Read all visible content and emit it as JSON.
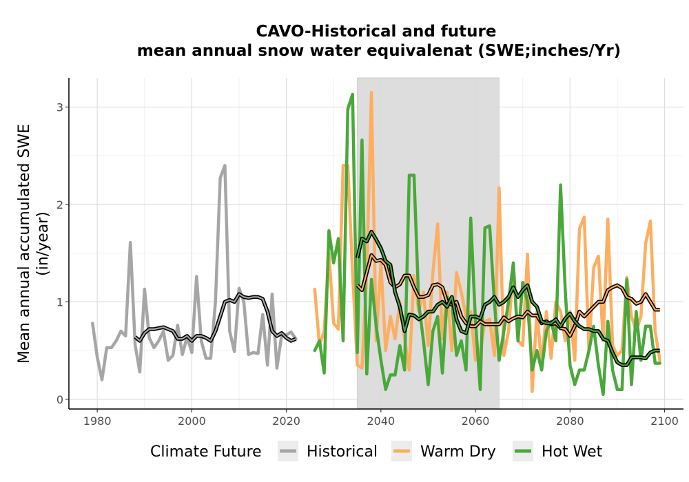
{
  "chart_data": {
    "type": "line",
    "title_line1": "CAVO-Historical and future",
    "title_line2": "mean annual snow water equivalenat (SWE;inches/Yr)",
    "ylabel_line1": "Mean annual accumulated SWE",
    "ylabel_line2": "(in/year)",
    "xlim": [
      1974,
      2104
    ],
    "ylim": [
      -0.1,
      3.3
    ],
    "x_ticks": [
      1980,
      2000,
      2020,
      2040,
      2060,
      2080,
      2100
    ],
    "y_ticks": [
      0,
      1,
      2,
      3
    ],
    "grid": true,
    "shaded_period": [
      2035,
      2065
    ],
    "legend": {
      "position": "bottom",
      "title": "Climate Future",
      "entries": [
        {
          "name": "Historical",
          "color": "#a6a6a6"
        },
        {
          "name": "Warm Dry",
          "color": "#fdae61"
        },
        {
          "name": "Hot Wet",
          "color": "#4aa83a"
        }
      ]
    },
    "series": [
      {
        "name": "Historical",
        "color": "#a6a6a6",
        "x": [
          1979,
          1980,
          1981,
          1982,
          1983,
          1984,
          1985,
          1986,
          1987,
          1988,
          1989,
          1990,
          1991,
          1992,
          1993,
          1994,
          1995,
          1996,
          1997,
          1998,
          1999,
          2000,
          2001,
          2002,
          2003,
          2004,
          2005,
          2006,
          2007,
          2008,
          2009,
          2010,
          2011,
          2012,
          2013,
          2014,
          2015,
          2016,
          2017,
          2018,
          2019,
          2020,
          2021,
          2022
        ],
        "values": [
          0.78,
          0.43,
          0.2,
          0.53,
          0.53,
          0.6,
          0.7,
          0.65,
          1.61,
          0.56,
          0.28,
          1.13,
          0.63,
          0.53,
          0.6,
          0.7,
          0.4,
          0.45,
          0.76,
          0.46,
          0.64,
          0.48,
          1.26,
          0.6,
          0.42,
          0.42,
          1.0,
          2.27,
          2.4,
          0.7,
          0.49,
          1.14,
          1.0,
          0.46,
          0.48,
          0.47,
          0.87,
          0.35,
          1.08,
          0.32,
          0.66,
          0.66,
          0.69,
          0.62
        ]
      },
      {
        "name": "Warm Dry",
        "color": "#fdae61",
        "x": [
          2026,
          2027,
          2028,
          2029,
          2030,
          2031,
          2032,
          2033,
          2034,
          2035,
          2036,
          2037,
          2038,
          2039,
          2040,
          2041,
          2042,
          2043,
          2044,
          2045,
          2046,
          2047,
          2048,
          2049,
          2050,
          2051,
          2052,
          2053,
          2054,
          2055,
          2056,
          2057,
          2058,
          2059,
          2060,
          2061,
          2062,
          2063,
          2064,
          2065,
          2066,
          2067,
          2068,
          2069,
          2070,
          2071,
          2072,
          2073,
          2074,
          2075,
          2076,
          2077,
          2078,
          2079,
          2080,
          2081,
          2082,
          2083,
          2084,
          2085,
          2086,
          2087,
          2088,
          2089,
          2090,
          2091,
          2092,
          2093,
          2094,
          2095,
          2096,
          2097,
          2098,
          2099
        ],
        "values": [
          1.13,
          0.55,
          0.7,
          1.5,
          0.78,
          0.72,
          2.4,
          2.4,
          1.3,
          0.35,
          0.32,
          1.3,
          3.15,
          0.6,
          1.4,
          0.5,
          0.85,
          0.62,
          1.0,
          0.62,
          0.3,
          1.27,
          0.9,
          1.1,
          0.55,
          1.3,
          1.8,
          0.62,
          1.1,
          0.5,
          1.3,
          1.1,
          0.85,
          0.9,
          0.4,
          0.48,
          0.8,
          0.82,
          0.45,
          2.17,
          0.45,
          0.7,
          1.35,
          0.6,
          0.55,
          1.49,
          0.08,
          0.9,
          0.35,
          0.9,
          0.42,
          1.0,
          0.9,
          0.6,
          0.9,
          0.4,
          1.75,
          1.87,
          0.5,
          1.35,
          1.47,
          0.6,
          1.85,
          0.55,
          0.45,
          0.5,
          1.25,
          0.85,
          0.7,
          0.85,
          1.6,
          1.83,
          0.7,
          0.4
        ]
      },
      {
        "name": "Hot Wet",
        "color": "#4aa83a",
        "x": [
          2026,
          2027,
          2028,
          2029,
          2030,
          2031,
          2032,
          2033,
          2034,
          2035,
          2036,
          2037,
          2038,
          2039,
          2040,
          2041,
          2042,
          2043,
          2044,
          2045,
          2046,
          2047,
          2048,
          2049,
          2050,
          2051,
          2052,
          2053,
          2054,
          2055,
          2056,
          2057,
          2058,
          2059,
          2060,
          2061,
          2062,
          2063,
          2064,
          2065,
          2066,
          2067,
          2068,
          2069,
          2070,
          2071,
          2072,
          2073,
          2074,
          2075,
          2076,
          2077,
          2078,
          2079,
          2080,
          2081,
          2082,
          2083,
          2084,
          2085,
          2086,
          2087,
          2088,
          2089,
          2090,
          2091,
          2092,
          2093,
          2094,
          2095,
          2096,
          2097,
          2098,
          2099
        ],
        "values": [
          0.5,
          0.6,
          0.27,
          1.73,
          1.4,
          1.65,
          0.6,
          2.98,
          3.13,
          0.48,
          2.66,
          0.26,
          1.23,
          0.75,
          0.4,
          0.1,
          0.25,
          0.25,
          0.55,
          0.3,
          2.3,
          2.3,
          0.98,
          0.6,
          0.15,
          0.7,
          0.85,
          0.27,
          1.05,
          1.0,
          0.45,
          0.6,
          0.3,
          1.86,
          0.8,
          0.1,
          1.76,
          1.78,
          1.0,
          0.4,
          0.7,
          1.0,
          1.4,
          0.6,
          1.2,
          1.0,
          0.3,
          0.5,
          0.3,
          0.7,
          0.8,
          0.6,
          2.2,
          1.1,
          0.35,
          0.15,
          0.3,
          0.3,
          0.5,
          0.75,
          0.35,
          0.05,
          0.8,
          0.3,
          0.1,
          0.1,
          1.23,
          0.15,
          0.9,
          0.4,
          0.75,
          0.75,
          0.37,
          0.37
        ]
      }
    ],
    "smoothed": [
      {
        "name": "Historical",
        "color": "#a6a6a6",
        "x": [
          1988,
          1989,
          1990,
          1991,
          1992,
          1993,
          1994,
          1995,
          1996,
          1997,
          1998,
          1999,
          2000,
          2001,
          2002,
          2003,
          2004,
          2005,
          2006,
          2007,
          2008,
          2009,
          2010,
          2011,
          2012,
          2013,
          2014,
          2015,
          2016,
          2017,
          2018,
          2019,
          2020,
          2021,
          2022
        ],
        "values": [
          0.64,
          0.6,
          0.68,
          0.72,
          0.72,
          0.73,
          0.74,
          0.72,
          0.7,
          0.62,
          0.62,
          0.65,
          0.6,
          0.65,
          0.65,
          0.63,
          0.6,
          0.7,
          0.85,
          1.0,
          1.02,
          1.0,
          1.08,
          1.05,
          1.04,
          1.05,
          1.05,
          1.03,
          0.9,
          0.7,
          0.65,
          0.68,
          0.63,
          0.6,
          0.62
        ]
      },
      {
        "name": "Warm Dry",
        "color": "#fdae61",
        "x": [
          2035,
          2036,
          2037,
          2038,
          2039,
          2040,
          2041,
          2042,
          2043,
          2044,
          2045,
          2046,
          2047,
          2048,
          2049,
          2050,
          2051,
          2052,
          2053,
          2054,
          2055,
          2056,
          2057,
          2058,
          2059,
          2060,
          2061,
          2062,
          2063,
          2064,
          2065,
          2066,
          2067,
          2068,
          2069,
          2070,
          2071,
          2072,
          2073,
          2074,
          2075,
          2076,
          2077,
          2078,
          2079,
          2080,
          2081,
          2082,
          2083,
          2084,
          2085,
          2086,
          2087,
          2088,
          2089,
          2090,
          2091,
          2092,
          2093,
          2094,
          2095,
          2096,
          2097,
          2098,
          2099
        ],
        "values": [
          1.17,
          1.12,
          1.3,
          1.48,
          1.42,
          1.43,
          1.38,
          1.2,
          1.15,
          1.18,
          1.27,
          1.27,
          1.15,
          1.05,
          1.05,
          1.07,
          1.17,
          1.18,
          1.15,
          1.0,
          0.97,
          1.0,
          0.85,
          0.78,
          0.75,
          0.75,
          0.8,
          0.77,
          0.77,
          0.77,
          0.77,
          0.84,
          0.8,
          0.83,
          0.85,
          0.84,
          0.9,
          0.86,
          0.86,
          0.78,
          0.8,
          0.77,
          0.78,
          0.73,
          0.72,
          0.65,
          0.75,
          0.9,
          0.85,
          0.9,
          0.95,
          1.0,
          1.0,
          1.12,
          1.15,
          1.17,
          1.14,
          1.05,
          1.03,
          0.98,
          1.0,
          1.08,
          1.0,
          0.92,
          0.92
        ]
      },
      {
        "name": "Hot Wet",
        "color": "#4aa83a",
        "x": [
          2035,
          2036,
          2037,
          2038,
          2039,
          2040,
          2041,
          2042,
          2043,
          2044,
          2045,
          2046,
          2047,
          2048,
          2049,
          2050,
          2051,
          2052,
          2053,
          2054,
          2055,
          2056,
          2057,
          2058,
          2059,
          2060,
          2061,
          2062,
          2063,
          2064,
          2065,
          2066,
          2067,
          2068,
          2069,
          2070,
          2071,
          2072,
          2073,
          2074,
          2075,
          2076,
          2077,
          2078,
          2079,
          2080,
          2081,
          2082,
          2083,
          2084,
          2085,
          2086,
          2087,
          2088,
          2089,
          2090,
          2091,
          2092,
          2093,
          2094,
          2095,
          2096,
          2097,
          2098,
          2099
        ],
        "values": [
          1.45,
          1.65,
          1.62,
          1.72,
          1.64,
          1.55,
          1.42,
          1.38,
          1.1,
          0.95,
          0.7,
          0.87,
          0.86,
          0.82,
          0.85,
          0.9,
          0.9,
          0.97,
          1.0,
          0.95,
          1.05,
          0.82,
          0.7,
          0.68,
          0.85,
          0.85,
          0.83,
          0.97,
          1.0,
          1.05,
          0.97,
          1.0,
          1.05,
          1.15,
          1.05,
          1.12,
          1.17,
          1.0,
          0.95,
          0.8,
          0.78,
          0.78,
          0.82,
          0.75,
          0.83,
          0.88,
          0.8,
          0.75,
          0.72,
          0.72,
          0.7,
          0.7,
          0.62,
          0.6,
          0.48,
          0.38,
          0.35,
          0.35,
          0.43,
          0.43,
          0.43,
          0.42,
          0.48,
          0.5,
          0.5
        ]
      }
    ]
  }
}
